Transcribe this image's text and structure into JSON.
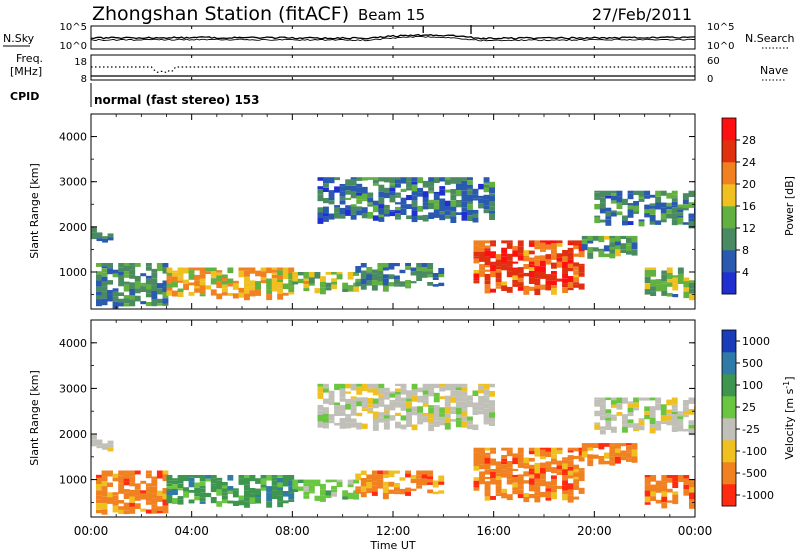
{
  "header": {
    "station": "Zhongshan Station (fitACF)",
    "beam": "Beam 15",
    "date": "27/Feb/2011"
  },
  "top_panels": {
    "nsky": {
      "label": "N.Sky",
      "left_ticks": [
        "10^5",
        "10^0"
      ],
      "right_label": "N.Search",
      "right_ticks": [
        "10^5",
        "10^0"
      ]
    },
    "freq": {
      "label_line1": "Freq.",
      "label_line2": "[MHz]",
      "left_ticks": [
        "18",
        "8"
      ],
      "right_label": "Nave",
      "right_ticks": [
        "60",
        "0"
      ]
    },
    "cpid": {
      "label": "CPID",
      "value": "normal (fast stereo) 153"
    }
  },
  "x_axis": {
    "label": "Time UT",
    "ticks": [
      "00:00",
      "04:00",
      "08:00",
      "12:00",
      "16:00",
      "20:00",
      "00:00"
    ]
  },
  "power_colorbar": {
    "label": "Power [dB]",
    "ticks": [
      "28",
      "24",
      "20",
      "16",
      "12",
      "8",
      "4"
    ],
    "colors": [
      "#2030d0",
      "#2a5ab0",
      "#4a8a60",
      "#62b040",
      "#f0c020",
      "#f08020",
      "#e03010",
      "#ff1010"
    ]
  },
  "velocity_colorbar": {
    "label": "Velocity [m s",
    "label_sup": "-1",
    "label_end": "]",
    "ticks": [
      "1000",
      "500",
      "100",
      "25",
      "-25",
      "-100",
      "-500",
      "-1000"
    ],
    "colors": [
      "#1a3cb8",
      "#2f7aa6",
      "#3e9550",
      "#6ac640",
      "#c0c0b8",
      "#f0c020",
      "#f08020",
      "#ff2a10"
    ]
  },
  "chart_data": [
    {
      "type": "heatmap",
      "title": "Power",
      "xlabel": "Time UT",
      "ylabel": "Slant Range [km]",
      "xlim": [
        "00:00",
        "24:00"
      ],
      "ylim": [
        180,
        4500
      ],
      "yticks": [
        1000,
        2000,
        3000,
        4000
      ],
      "colorbar": {
        "label": "Power [dB]",
        "range": [
          0,
          32
        ]
      },
      "blobs": [
        {
          "t0": 0.0,
          "t1": 0.8,
          "r0": 1700,
          "r1": 2000,
          "level": 6
        },
        {
          "t0": 0.2,
          "t1": 3.0,
          "r0": 300,
          "r1": 1200,
          "level": 9
        },
        {
          "t0": 3.0,
          "t1": 8.0,
          "r0": 500,
          "r1": 1100,
          "level": 19
        },
        {
          "t0": 8.0,
          "t1": 10.5,
          "r0": 600,
          "r1": 1000,
          "level": 15
        },
        {
          "t0": 10.5,
          "t1": 14.0,
          "r0": 700,
          "r1": 1200,
          "level": 10
        },
        {
          "t0": 15.2,
          "t1": 19.5,
          "r0": 600,
          "r1": 1700,
          "level": 26
        },
        {
          "t0": 19.5,
          "t1": 21.5,
          "r0": 1400,
          "r1": 1800,
          "level": 11
        },
        {
          "t0": 20.0,
          "t1": 24.0,
          "r0": 2100,
          "r1": 2800,
          "level": 8
        },
        {
          "t0": 22.0,
          "t1": 24.0,
          "r0": 500,
          "r1": 1100,
          "level": 12
        },
        {
          "t0": 9.0,
          "t1": 16.0,
          "r0": 2200,
          "r1": 3100,
          "level": 7
        }
      ]
    },
    {
      "type": "heatmap",
      "title": "Velocity",
      "xlabel": "Time UT",
      "ylabel": "Slant Range [km]",
      "xlim": [
        "00:00",
        "24:00"
      ],
      "ylim": [
        180,
        4500
      ],
      "yticks": [
        1000,
        2000,
        3000,
        4000
      ],
      "colorbar": {
        "label": "Velocity [m s-1]",
        "range": [
          -1000,
          1000
        ]
      },
      "blobs": [
        {
          "t0": 0.0,
          "t1": 0.8,
          "r0": 1700,
          "r1": 2000,
          "v": 0
        },
        {
          "t0": 0.2,
          "t1": 3.0,
          "r0": 300,
          "r1": 1200,
          "v": -150
        },
        {
          "t0": 3.0,
          "t1": 8.0,
          "r0": 500,
          "r1": 1100,
          "v": 300
        },
        {
          "t0": 8.0,
          "t1": 10.5,
          "r0": 600,
          "r1": 1000,
          "v": 80
        },
        {
          "t0": 10.5,
          "t1": 14.0,
          "r0": 700,
          "r1": 1200,
          "v": -300
        },
        {
          "t0": 15.2,
          "t1": 19.5,
          "r0": 600,
          "r1": 1700,
          "v": -300
        },
        {
          "t0": 19.5,
          "t1": 21.5,
          "r0": 1400,
          "r1": 1800,
          "v": -200
        },
        {
          "t0": 20.0,
          "t1": 24.0,
          "r0": 2100,
          "r1": 2800,
          "v": 0
        },
        {
          "t0": 22.0,
          "t1": 24.0,
          "r0": 500,
          "r1": 1100,
          "v": -400
        },
        {
          "t0": 9.0,
          "t1": 16.0,
          "r0": 2200,
          "r1": 3100,
          "v": 0
        }
      ]
    }
  ]
}
